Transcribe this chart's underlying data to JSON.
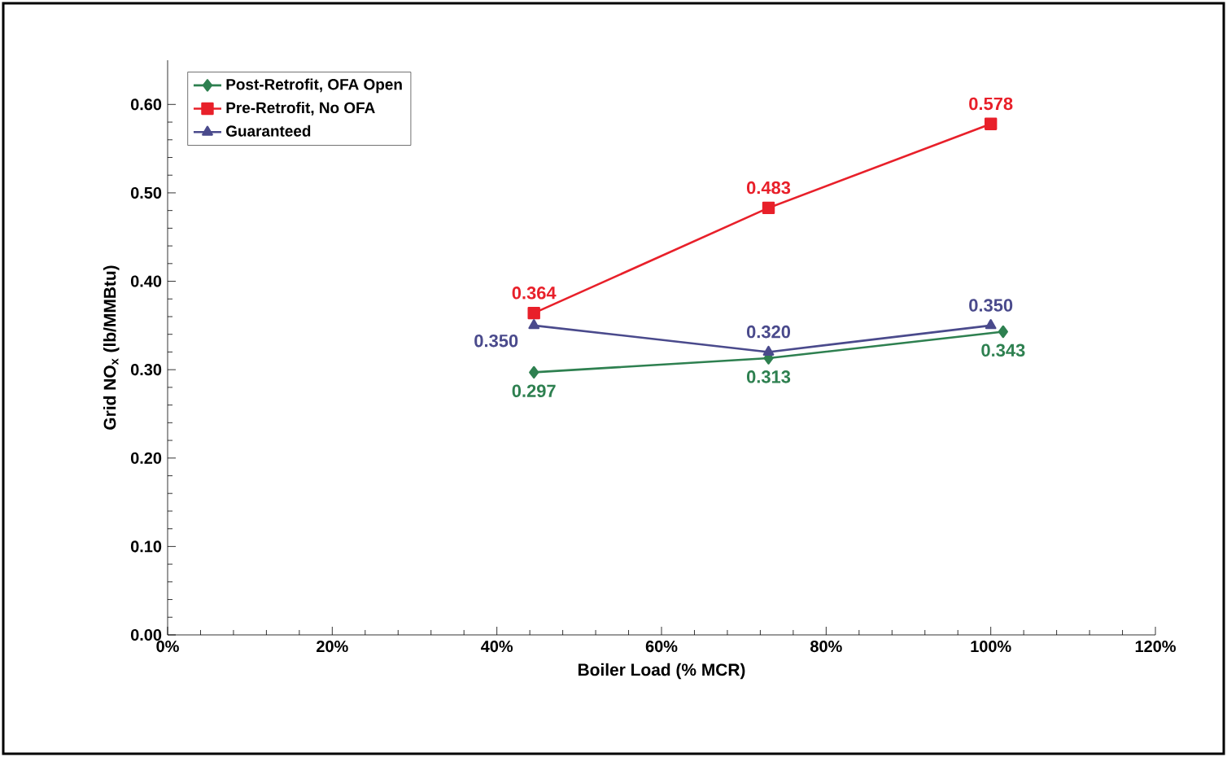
{
  "chart_data": {
    "type": "line",
    "xlabel": "Boiler Load (% MCR)",
    "ylabel": "Grid NO$_{x}$ (lb/MMBtu)",
    "xlim": [
      0,
      120
    ],
    "ylim": [
      0,
      0.65
    ],
    "xticks": [
      {
        "value": 0,
        "label": "0%"
      },
      {
        "value": 20,
        "label": "20%"
      },
      {
        "value": 40,
        "label": "40%"
      },
      {
        "value": 60,
        "label": "60%"
      },
      {
        "value": 80,
        "label": "80%"
      },
      {
        "value": 100,
        "label": "100%"
      },
      {
        "value": 120,
        "label": "120%"
      }
    ],
    "yticks": [
      {
        "value": 0,
        "label": "0.00"
      },
      {
        "value": 0.1,
        "label": "0.10"
      },
      {
        "value": 0.2,
        "label": "0.20"
      },
      {
        "value": 0.3,
        "label": "0.30"
      },
      {
        "value": 0.4,
        "label": "0.40"
      },
      {
        "value": 0.5,
        "label": "0.50"
      },
      {
        "value": 0.6,
        "label": "0.60"
      }
    ],
    "legend": "top left",
    "grid": false,
    "series": [
      {
        "name": "Post-Retrofit, OFA Open",
        "color": "#2e8050",
        "marker": "diamond",
        "x": [
          44.5,
          73,
          101.5
        ],
        "values": [
          0.297,
          0.313,
          0.343
        ],
        "value_labels": [
          "0.297",
          "0.313",
          "0.343"
        ]
      },
      {
        "name": "Pre-Retrofit, No OFA",
        "color": "#e8202a",
        "marker": "square",
        "x": [
          44.5,
          73,
          100
        ],
        "values": [
          0.364,
          0.483,
          0.578
        ],
        "value_labels": [
          "0.364",
          "0.483",
          "0.578"
        ]
      },
      {
        "name": "Guaranteed",
        "color": "#4a4a8c",
        "marker": "triangle",
        "x": [
          44.5,
          73,
          100
        ],
        "values": [
          0.35,
          0.32,
          0.35
        ],
        "value_labels": [
          "0.350",
          "0.320",
          "0.350"
        ]
      }
    ]
  }
}
